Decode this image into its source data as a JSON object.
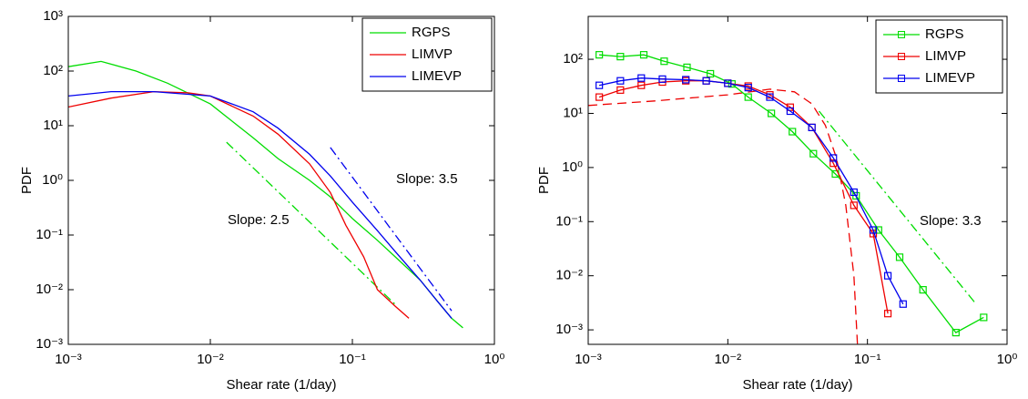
{
  "chart_data": [
    {
      "type": "line",
      "xlabel": "Shear rate (1/day)",
      "ylabel": "PDF",
      "xlog": true,
      "ylog": true,
      "xlim": [
        0.001,
        1
      ],
      "ylim": [
        0.001,
        1000
      ],
      "xticks": [
        {
          "value": 0.001,
          "label": "10⁻³"
        },
        {
          "value": 0.01,
          "label": "10⁻²"
        },
        {
          "value": 0.1,
          "label": "10⁻¹"
        },
        {
          "value": 1,
          "label": "10⁰"
        }
      ],
      "yticks": [
        {
          "value": 0.001,
          "label": "10⁻³"
        },
        {
          "value": 0.01,
          "label": "10⁻²"
        },
        {
          "value": 0.1,
          "label": "10⁻¹"
        },
        {
          "value": 1,
          "label": "10⁰"
        },
        {
          "value": 10,
          "label": "10¹"
        },
        {
          "value": 100,
          "label": "10²"
        },
        {
          "value": 1000,
          "label": "10³"
        }
      ],
      "legend": "upper right",
      "marker": "none",
      "series": [
        {
          "name": "RGPS",
          "color": "#00dd00",
          "x": [
            0.001,
            0.0017,
            0.003,
            0.005,
            0.01,
            0.02,
            0.03,
            0.05,
            0.07,
            0.1,
            0.15,
            0.2,
            0.3,
            0.4,
            0.5,
            0.6
          ],
          "values": [
            120,
            150,
            100,
            60,
            25,
            6,
            2.5,
            1,
            0.5,
            0.2,
            0.08,
            0.04,
            0.015,
            0.006,
            0.003,
            0.002
          ]
        },
        {
          "name": "LIMVP",
          "color": "#ee0000",
          "x": [
            0.001,
            0.002,
            0.004,
            0.007,
            0.01,
            0.02,
            0.03,
            0.05,
            0.07,
            0.09,
            0.12,
            0.15,
            0.2,
            0.25
          ],
          "values": [
            22,
            32,
            42,
            40,
            35,
            15,
            7,
            2,
            0.6,
            0.15,
            0.04,
            0.01,
            0.005,
            0.003
          ]
        },
        {
          "name": "LIMEVP",
          "color": "#0000ee",
          "x": [
            0.001,
            0.002,
            0.004,
            0.01,
            0.02,
            0.03,
            0.05,
            0.07,
            0.1,
            0.15,
            0.2,
            0.3,
            0.4,
            0.5
          ],
          "values": [
            35,
            42,
            42,
            35,
            18,
            9,
            3,
            1.2,
            0.4,
            0.12,
            0.05,
            0.015,
            0.006,
            0.003
          ]
        }
      ],
      "guides": [
        {
          "color": "#00dd00",
          "style": "dashdot",
          "x": [
            0.013,
            0.2
          ],
          "values": [
            5,
            0.0054
          ],
          "label": "Slope: 2.5"
        },
        {
          "color": "#0000ee",
          "style": "dashdot",
          "x": [
            0.07,
            0.5
          ],
          "values": [
            4,
            0.0041
          ],
          "label": "Slope: 3.5"
        }
      ]
    },
    {
      "type": "line",
      "xlabel": "Shear rate (1/day)",
      "ylabel": "PDF",
      "xlog": true,
      "ylog": true,
      "xlim": [
        0.001,
        1
      ],
      "ylim": [
        0.00054,
        620
      ],
      "xticks": [
        {
          "value": 0.001,
          "label": "10⁻³"
        },
        {
          "value": 0.01,
          "label": "10⁻²"
        },
        {
          "value": 0.1,
          "label": "10⁻¹"
        },
        {
          "value": 1,
          "label": "10⁰"
        }
      ],
      "yticks": [
        {
          "value": 0.001,
          "label": "10⁻³"
        },
        {
          "value": 0.01,
          "label": "10⁻²"
        },
        {
          "value": 0.1,
          "label": "10⁻¹"
        },
        {
          "value": 1,
          "label": "10⁰"
        },
        {
          "value": 10,
          "label": "10¹"
        },
        {
          "value": 100,
          "label": "10²"
        }
      ],
      "legend": "upper right",
      "marker": "square",
      "series": [
        {
          "name": "RGPS",
          "color": "#00dd00",
          "x": [
            0.0012,
            0.0017,
            0.0025,
            0.0035,
            0.0051,
            0.0075,
            0.0107,
            0.014,
            0.0205,
            0.029,
            0.041,
            0.059,
            0.083,
            0.12,
            0.17,
            0.25,
            0.43,
            0.68
          ],
          "values": [
            121,
            112,
            121,
            92,
            71,
            54,
            35,
            20,
            10,
            4.6,
            1.8,
            0.76,
            0.3,
            0.07,
            0.022,
            0.0055,
            0.00089,
            0.0017
          ]
        },
        {
          "name": "LIMVP",
          "color": "#ee0000",
          "x": [
            0.0012,
            0.0017,
            0.0024,
            0.0034,
            0.005,
            0.007,
            0.01,
            0.014,
            0.02,
            0.028,
            0.04,
            0.057,
            0.08,
            0.11,
            0.14
          ],
          "values": [
            20,
            27,
            33,
            38,
            40,
            40,
            36,
            32,
            22,
            13,
            5.5,
            1.2,
            0.2,
            0.06,
            0.002
          ]
        },
        {
          "name": "LIMEVP",
          "color": "#0000ee",
          "x": [
            0.0012,
            0.0017,
            0.0024,
            0.0034,
            0.005,
            0.007,
            0.01,
            0.014,
            0.02,
            0.028,
            0.04,
            0.057,
            0.08,
            0.11,
            0.14,
            0.18
          ],
          "values": [
            33,
            40,
            45,
            43,
            42,
            40,
            36,
            30,
            20,
            11,
            5.5,
            1.5,
            0.35,
            0.07,
            0.01,
            0.003
          ]
        }
      ],
      "guides": [
        {
          "color": "#ee0000",
          "style": "dashed",
          "x": [
            0.001,
            0.003,
            0.01,
            0.02,
            0.03,
            0.04,
            0.05,
            0.06,
            0.07,
            0.08,
            0.085
          ],
          "values": [
            14,
            17,
            22,
            28,
            25,
            15,
            6,
            1.5,
            0.2,
            0.01,
            0.0005
          ]
        },
        {
          "color": "#00dd00",
          "style": "dashdot",
          "x": [
            0.045,
            0.6
          ],
          "values": [
            11,
            0.003
          ],
          "label": "Slope: 3.3"
        }
      ]
    }
  ]
}
